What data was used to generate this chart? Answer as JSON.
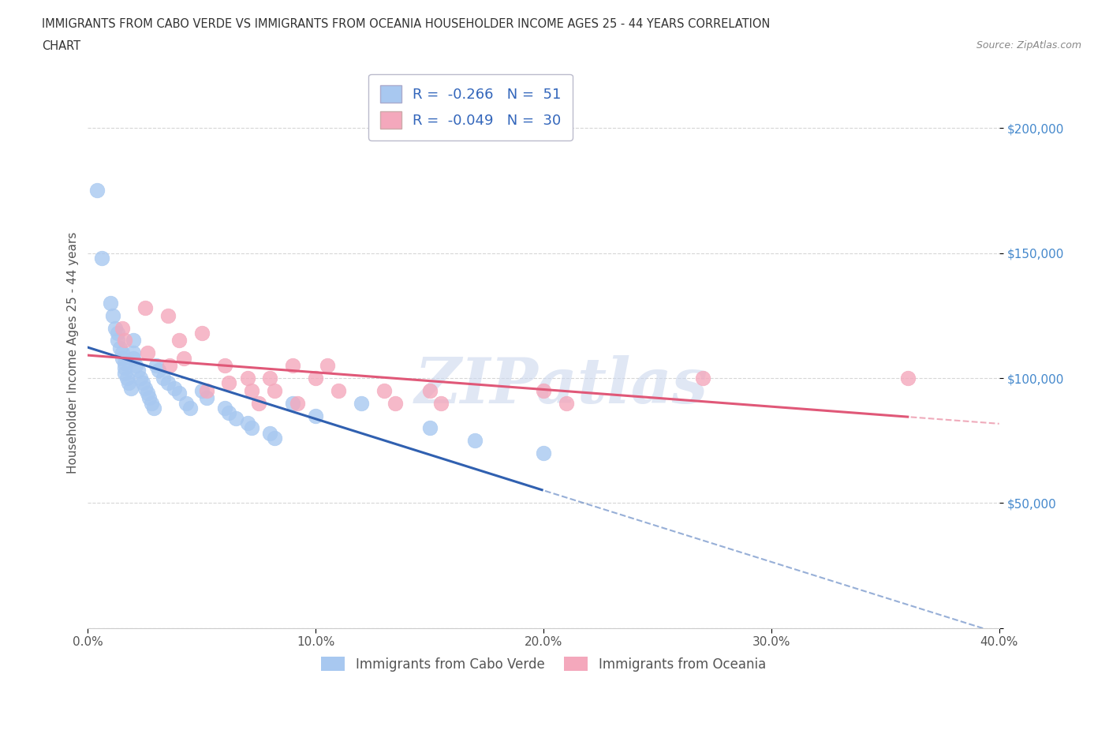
{
  "title_line1": "IMMIGRANTS FROM CABO VERDE VS IMMIGRANTS FROM OCEANIA HOUSEHOLDER INCOME AGES 25 - 44 YEARS CORRELATION",
  "title_line2": "CHART",
  "source_text": "Source: ZipAtlas.com",
  "ylabel": "Householder Income Ages 25 - 44 years",
  "watermark": "ZIPatlas",
  "cabo_verde_R": -0.266,
  "cabo_verde_N": 51,
  "oceania_R": -0.049,
  "oceania_N": 30,
  "cabo_verde_color": "#A8C8F0",
  "oceania_color": "#F4A8BC",
  "cabo_verde_line_color": "#3060B0",
  "oceania_line_color": "#E05878",
  "background_color": "#ffffff",
  "xlim": [
    0.0,
    0.4
  ],
  "ylim": [
    0,
    220000
  ],
  "y_ticks": [
    0,
    50000,
    100000,
    150000,
    200000
  ],
  "x_ticks": [
    0.0,
    0.1,
    0.2,
    0.3,
    0.4
  ],
  "cabo_verde_x": [
    0.004,
    0.006,
    0.01,
    0.011,
    0.012,
    0.013,
    0.013,
    0.014,
    0.015,
    0.015,
    0.016,
    0.016,
    0.016,
    0.017,
    0.018,
    0.019,
    0.02,
    0.02,
    0.02,
    0.021,
    0.022,
    0.023,
    0.024,
    0.025,
    0.026,
    0.027,
    0.028,
    0.029,
    0.03,
    0.031,
    0.033,
    0.035,
    0.038,
    0.04,
    0.043,
    0.045,
    0.05,
    0.052,
    0.06,
    0.062,
    0.065,
    0.07,
    0.072,
    0.08,
    0.082,
    0.09,
    0.1,
    0.12,
    0.15,
    0.17,
    0.2
  ],
  "cabo_verde_y": [
    175000,
    148000,
    130000,
    125000,
    120000,
    118000,
    115000,
    112000,
    110000,
    108000,
    106000,
    104000,
    102000,
    100000,
    98000,
    96000,
    115000,
    110000,
    108000,
    105000,
    103000,
    100000,
    98000,
    96000,
    94000,
    92000,
    90000,
    88000,
    105000,
    103000,
    100000,
    98000,
    96000,
    94000,
    90000,
    88000,
    95000,
    92000,
    88000,
    86000,
    84000,
    82000,
    80000,
    78000,
    76000,
    90000,
    85000,
    90000,
    80000,
    75000,
    70000
  ],
  "oceania_x": [
    0.015,
    0.016,
    0.025,
    0.026,
    0.035,
    0.036,
    0.04,
    0.042,
    0.05,
    0.052,
    0.06,
    0.062,
    0.07,
    0.072,
    0.075,
    0.08,
    0.082,
    0.09,
    0.092,
    0.1,
    0.105,
    0.11,
    0.13,
    0.135,
    0.15,
    0.155,
    0.2,
    0.21,
    0.27,
    0.36
  ],
  "oceania_y": [
    120000,
    115000,
    128000,
    110000,
    125000,
    105000,
    115000,
    108000,
    118000,
    95000,
    105000,
    98000,
    100000,
    95000,
    90000,
    100000,
    95000,
    105000,
    90000,
    100000,
    105000,
    95000,
    95000,
    90000,
    95000,
    90000,
    95000,
    90000,
    100000,
    100000
  ]
}
